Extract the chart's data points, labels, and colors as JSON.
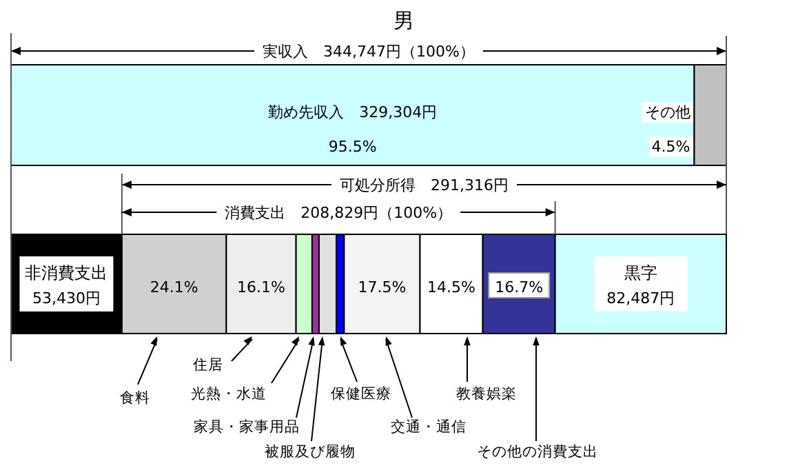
{
  "chart_data": {
    "type": "bar",
    "orientation": "horizontal",
    "stacked": true,
    "title": "男",
    "categories": [
      null,
      null
    ],
    "annotations": [
      "実収入　344,747円（100%）",
      "可処分所得　291,316円",
      "消費支出　208,829円（100%）",
      "95.5%",
      "4.5%",
      "24.1%",
      "16.1%",
      "17.5%",
      "14.5%",
      "16.7%"
    ],
    "series": [
      {
        "name": "勤め先収入　329,304円",
        "color": "#ccffff",
        "values": [
          329304,
          null
        ]
      },
      {
        "name": "その他",
        "color": "#c0c0c0",
        "values": [
          15443,
          null
        ]
      },
      {
        "name": "非消費支出",
        "color": "#000000",
        "values": [
          null,
          53430
        ],
        "value_labels": [
          null,
          "53,430円"
        ]
      },
      {
        "name": "食料",
        "color": "#d0d0d0",
        "values": [
          null,
          50328
        ]
      },
      {
        "name": "住居",
        "color": "#eeeeee",
        "values": [
          null,
          33621
        ]
      },
      {
        "name": "光熱・水道",
        "color": "#ccffcc",
        "values": [
          null,
          7727
        ]
      },
      {
        "name": "家具・家事用品",
        "color": "#993399",
        "values": [
          null,
          3341
        ]
      },
      {
        "name": "被服及び履物",
        "color": "#e0e0e0",
        "values": [
          null,
          8353
        ]
      },
      {
        "name": "保健医療",
        "color": "#0000ff",
        "values": [
          null,
          3759
        ]
      },
      {
        "name": "交通・通信",
        "color": "#f4f4f4",
        "values": [
          null,
          36545
        ]
      },
      {
        "name": "教養娯楽",
        "color": "#ffffff",
        "values": [
          null,
          30280
        ]
      },
      {
        "name": "その他の消費支出",
        "color": "#333399",
        "values": [
          null,
          34874
        ]
      },
      {
        "name": "黒字",
        "color": "#ccffff",
        "values": [
          null,
          82487
        ],
        "value_labels": [
          null,
          "82,487円"
        ]
      }
    ]
  }
}
